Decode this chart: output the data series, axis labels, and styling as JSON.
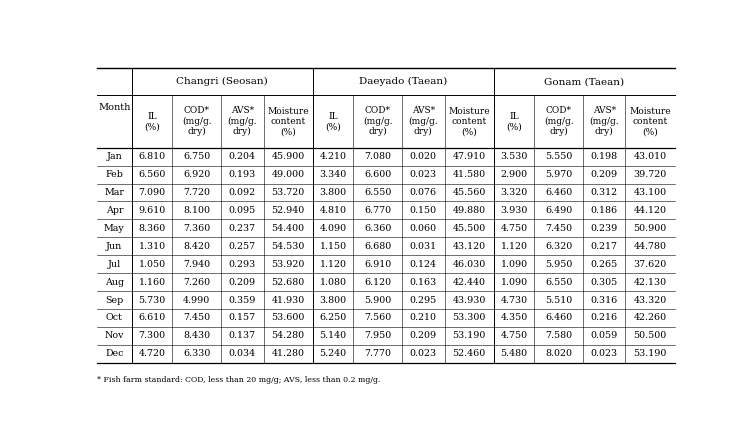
{
  "group_headers": [
    "Changri (Seosan)",
    "Daeyado (Taean)",
    "Gonam (Taean)"
  ],
  "months": [
    "Jan",
    "Feb",
    "Mar",
    "Apr",
    "May",
    "Jun",
    "Jul",
    "Aug",
    "Sep",
    "Oct",
    "Nov",
    "Dec"
  ],
  "data": {
    "Changri": {
      "IL": [
        6.81,
        6.56,
        7.09,
        9.61,
        8.36,
        1.31,
        1.05,
        1.16,
        5.73,
        6.61,
        7.3,
        4.72
      ],
      "COD": [
        6.75,
        6.92,
        7.72,
        8.1,
        7.36,
        8.42,
        7.94,
        7.26,
        4.99,
        7.45,
        8.43,
        6.33
      ],
      "AVS": [
        0.204,
        0.193,
        0.092,
        0.095,
        0.237,
        0.257,
        0.293,
        0.209,
        0.359,
        0.157,
        0.137,
        0.034
      ],
      "Moisture": [
        45.9,
        49.0,
        53.72,
        52.94,
        54.4,
        54.53,
        53.92,
        52.68,
        41.93,
        53.6,
        54.28,
        41.28
      ]
    },
    "Daeyado": {
      "IL": [
        4.21,
        3.34,
        3.8,
        4.81,
        4.09,
        1.15,
        1.12,
        1.08,
        3.8,
        6.25,
        5.14,
        5.24
      ],
      "COD": [
        7.08,
        6.6,
        6.55,
        6.77,
        6.36,
        6.68,
        6.91,
        6.12,
        5.9,
        7.56,
        7.95,
        7.77
      ],
      "AVS": [
        0.02,
        0.023,
        0.076,
        0.15,
        0.06,
        0.031,
        0.124,
        0.163,
        0.295,
        0.21,
        0.209,
        0.023
      ],
      "Moisture": [
        47.91,
        41.58,
        45.56,
        49.88,
        45.5,
        43.12,
        46.03,
        42.44,
        43.93,
        53.3,
        53.19,
        52.46
      ]
    },
    "Gonam": {
      "IL": [
        3.53,
        2.9,
        3.32,
        3.93,
        4.75,
        1.12,
        1.09,
        1.09,
        4.73,
        4.35,
        4.75,
        5.48
      ],
      "COD": [
        5.55,
        5.97,
        6.46,
        6.49,
        7.45,
        6.32,
        5.95,
        6.55,
        5.51,
        6.46,
        7.58,
        8.02
      ],
      "AVS": [
        0.198,
        0.209,
        0.312,
        0.186,
        0.239,
        0.217,
        0.265,
        0.305,
        0.316,
        0.216,
        0.059,
        0.023
      ],
      "Moisture": [
        43.01,
        39.72,
        43.1,
        44.12,
        50.9,
        44.78,
        37.62,
        42.13,
        43.32,
        42.26,
        50.5,
        53.19
      ]
    }
  },
  "footnote": "* Fish farm standard: COD, less than 20 mg/g; AVS, less than 0.2 mg/g.",
  "background_color": "#ffffff",
  "text_color": "#000000",
  "line_color": "#000000",
  "font_size": 6.8,
  "header_font_size": 7.0,
  "group_font_size": 7.5
}
